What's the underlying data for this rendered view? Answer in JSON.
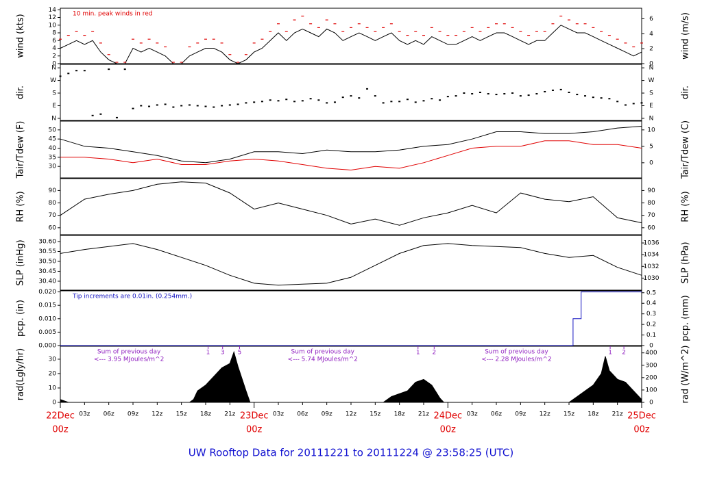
{
  "title": "UW Rooftop Data for 20111221  to  20111224 @ 23:58:25  (UTC)",
  "chart_data": [
    {
      "type": "line",
      "y_label": "wind (kts)",
      "y2_label": "wind (m/s)",
      "note": "10 min. peak winds in red",
      "note_color": "#e00000",
      "xlim": [
        0,
        72
      ],
      "ylim": [
        0,
        14.4
      ],
      "yticks": [
        0,
        2,
        4,
        6,
        8,
        10,
        12,
        14
      ],
      "y2lim": [
        0,
        7.41
      ],
      "y2ticks": [
        0,
        2,
        4,
        6
      ],
      "x": [
        0,
        1,
        2,
        3,
        4,
        5,
        6,
        7,
        8,
        9,
        10,
        11,
        12,
        13,
        14,
        15,
        16,
        17,
        18,
        19,
        20,
        21,
        22,
        23,
        24,
        25,
        26,
        27,
        28,
        29,
        30,
        31,
        32,
        33,
        34,
        35,
        36,
        37,
        38,
        39,
        40,
        41,
        42,
        43,
        44,
        45,
        46,
        47,
        48,
        49,
        50,
        51,
        52,
        53,
        54,
        55,
        56,
        57,
        58,
        59,
        60,
        61,
        62,
        63,
        64,
        65,
        66,
        67,
        68,
        69,
        70,
        71,
        72
      ],
      "series": [
        {
          "color": "#000000",
          "values": [
            4,
            5,
            6,
            5,
            6,
            3,
            1,
            0,
            0,
            4,
            3,
            4,
            3,
            2,
            0,
            0,
            2,
            3,
            4,
            4,
            3,
            1,
            0,
            1,
            3,
            4,
            6,
            8,
            6,
            8,
            9,
            8,
            7,
            9,
            8,
            6,
            7,
            8,
            7,
            6,
            7,
            8,
            6,
            5,
            6,
            5,
            7,
            6,
            5,
            5,
            6,
            7,
            6,
            7,
            8,
            8,
            7,
            6,
            5,
            6,
            6,
            8,
            10,
            9,
            8,
            8,
            7,
            6,
            5,
            4,
            3,
            2,
            3
          ]
        },
        {
          "color": "#e00000",
          "marker": "dash",
          "values": [
            6,
            7,
            8,
            7,
            8,
            5,
            2,
            0,
            0,
            6,
            5,
            6,
            5,
            4,
            0,
            0,
            4,
            5,
            6,
            6,
            5,
            2,
            0,
            2,
            5,
            6,
            8,
            10,
            8,
            11,
            12,
            10,
            9,
            11,
            10,
            8,
            9,
            10,
            9,
            8,
            9,
            10,
            8,
            7,
            8,
            7,
            9,
            8,
            7,
            7,
            8,
            9,
            8,
            9,
            10,
            10,
            9,
            8,
            7,
            8,
            8,
            10,
            12,
            11,
            10,
            10,
            9,
            8,
            7,
            6,
            5,
            4,
            5
          ]
        }
      ]
    },
    {
      "type": "scatter",
      "y_label": "dir.",
      "y2_label": "dir.",
      "xlim": [
        0,
        72
      ],
      "ylim": [
        -15,
        385
      ],
      "yticks": [
        {
          "value": 0,
          "label": "N"
        },
        {
          "value": 90,
          "label": "E"
        },
        {
          "value": 180,
          "label": "S"
        },
        {
          "value": 270,
          "label": "W"
        },
        {
          "value": 360,
          "label": "N"
        }
      ],
      "y2lim": [
        -15,
        385
      ],
      "y2ticks": [
        {
          "value": 0,
          "label": "N"
        },
        {
          "value": 90,
          "label": "E"
        },
        {
          "value": 180,
          "label": "S"
        },
        {
          "value": 270,
          "label": "W"
        },
        {
          "value": 360,
          "label": "N"
        }
      ],
      "x": [
        0,
        1,
        2,
        3,
        4,
        5,
        6,
        7,
        8,
        9,
        10,
        11,
        12,
        13,
        14,
        15,
        16,
        17,
        18,
        19,
        20,
        21,
        22,
        23,
        24,
        25,
        26,
        27,
        28,
        29,
        30,
        31,
        32,
        33,
        34,
        35,
        36,
        37,
        38,
        39,
        40,
        41,
        42,
        43,
        44,
        45,
        46,
        47,
        48,
        49,
        50,
        51,
        52,
        53,
        54,
        55,
        56,
        57,
        58,
        59,
        60,
        61,
        62,
        63,
        64,
        65,
        66,
        67,
        68,
        69,
        70,
        71,
        72
      ],
      "series": [
        {
          "color": "#000000",
          "values": [
            300,
            320,
            340,
            340,
            20,
            30,
            350,
            5,
            350,
            70,
            90,
            85,
            95,
            100,
            80,
            90,
            95,
            90,
            85,
            80,
            90,
            95,
            100,
            110,
            115,
            120,
            130,
            125,
            135,
            120,
            125,
            140,
            130,
            110,
            115,
            150,
            160,
            145,
            210,
            160,
            110,
            120,
            120,
            135,
            115,
            125,
            140,
            130,
            155,
            160,
            180,
            175,
            185,
            175,
            170,
            175,
            180,
            160,
            165,
            175,
            190,
            200,
            205,
            185,
            170,
            160,
            150,
            145,
            140,
            120,
            95,
            105,
            110
          ]
        }
      ]
    },
    {
      "type": "line",
      "y_label": "Tair/Tdew (F)",
      "y2_label": "Tair/Tdew (C)",
      "xlim": [
        0,
        72
      ],
      "ylim": [
        23.7,
        54.8
      ],
      "yticks": [
        30,
        35,
        40,
        45,
        50
      ],
      "y2lim": [
        -4.61,
        12.67
      ],
      "y2ticks": [
        0,
        5,
        10
      ],
      "x": [
        0,
        3,
        6,
        9,
        12,
        15,
        18,
        21,
        24,
        27,
        30,
        33,
        36,
        39,
        42,
        45,
        48,
        51,
        54,
        57,
        60,
        63,
        66,
        69,
        72
      ],
      "series": [
        {
          "color": "#000000",
          "values": [
            45,
            41,
            40,
            38,
            36,
            33,
            32,
            34,
            38,
            38,
            37,
            39,
            38,
            38,
            39,
            41,
            42,
            45,
            49,
            49,
            48,
            48,
            49,
            51,
            52
          ]
        },
        {
          "color": "#e00000",
          "values": [
            35,
            35,
            34,
            32,
            34,
            31,
            31,
            33,
            34,
            33,
            31,
            29,
            28,
            30,
            29,
            32,
            36,
            40,
            41,
            41,
            44,
            44,
            42,
            42,
            40
          ]
        }
      ]
    },
    {
      "type": "line",
      "y_label": "RH (%)",
      "y2_label": "RH (%)",
      "xlim": [
        0,
        72
      ],
      "ylim": [
        54.4,
        99.6
      ],
      "yticks": [
        60,
        70,
        80,
        90
      ],
      "y2lim": [
        54.4,
        99.6
      ],
      "y2ticks": [
        60,
        70,
        80,
        90
      ],
      "x": [
        0,
        3,
        6,
        9,
        12,
        15,
        18,
        21,
        24,
        27,
        30,
        33,
        36,
        39,
        42,
        45,
        48,
        51,
        54,
        57,
        60,
        63,
        66,
        69,
        72
      ],
      "series": [
        {
          "color": "#000000",
          "values": [
            70,
            83,
            87,
            90,
            95,
            97,
            96,
            88,
            75,
            80,
            75,
            70,
            63,
            67,
            62,
            68,
            72,
            78,
            72,
            88,
            83,
            81,
            85,
            68,
            64
          ]
        }
      ]
    },
    {
      "type": "line",
      "y_label": "SLP (inHg)",
      "y2_label": "SLP (hPa)",
      "xlim": [
        0,
        72
      ],
      "ylim": [
        30.355,
        30.631
      ],
      "yticks": [
        {
          "value": 30.4,
          "label": "30.40"
        },
        30.45,
        {
          "value": 30.5,
          "label": "30.50"
        },
        30.55,
        {
          "value": 30.6,
          "label": "30.60"
        }
      ],
      "y2lim": [
        1027.94,
        1037.29
      ],
      "y2ticks": [
        1030,
        1032,
        1034,
        1036
      ],
      "x": [
        0,
        3,
        6,
        9,
        12,
        15,
        18,
        21,
        24,
        27,
        30,
        33,
        36,
        39,
        42,
        45,
        48,
        51,
        54,
        57,
        60,
        63,
        66,
        69,
        72
      ],
      "series": [
        {
          "color": "#000000",
          "values": [
            30.54,
            30.56,
            30.575,
            30.59,
            30.56,
            30.52,
            30.48,
            30.43,
            30.39,
            30.38,
            30.385,
            30.39,
            30.42,
            30.48,
            30.54,
            30.58,
            30.59,
            30.58,
            30.575,
            30.57,
            30.54,
            30.52,
            30.53,
            30.47,
            30.43
          ]
        }
      ]
    },
    {
      "type": "line",
      "y_label": "pcp. (in)",
      "y2_label": "pcp. (mm)",
      "note": "Tip increments are 0.01in. (0.254mm.)",
      "note_color": "#1010c0",
      "xlim": [
        0,
        72
      ],
      "ylim": [
        0,
        0.0204
      ],
      "yticks": [
        {
          "value": 0,
          "label": "0.000"
        },
        {
          "value": 0.005,
          "label": "0.005"
        },
        {
          "value": 0.01,
          "label": "0.010"
        },
        {
          "value": 0.015,
          "label": "0.015"
        },
        {
          "value": 0.02,
          "label": "0.020"
        }
      ],
      "y2lim": [
        0,
        0.518
      ],
      "y2ticks": [
        0,
        0.1,
        0.2,
        0.3,
        0.4,
        0.5
      ],
      "x": [
        0,
        63.5,
        63.5,
        64.5,
        64.5,
        72
      ],
      "series": [
        {
          "color": "#1010c0",
          "values": [
            0,
            0,
            0.01,
            0.01,
            0.02,
            0.02
          ]
        }
      ]
    },
    {
      "type": "area",
      "y_label": "rad(Lgly/hr)",
      "y2_label": "rad (W/m^2)",
      "xlim": [
        0,
        72
      ],
      "ylim": [
        0,
        39
      ],
      "yticks": [
        0,
        10,
        20,
        30
      ],
      "y2lim": [
        0,
        453.6
      ],
      "y2ticks": [
        0,
        100,
        200,
        300,
        400
      ],
      "x": [
        0,
        1,
        2,
        16,
        16.5,
        17,
        18,
        19,
        20,
        21,
        21.5,
        22,
        23,
        23.5,
        40,
        41,
        42,
        43,
        44,
        45,
        46,
        47,
        47.5,
        63,
        64,
        65,
        66,
        67,
        67.5,
        68,
        69,
        70,
        71,
        72
      ],
      "series": [
        {
          "color": "#000000",
          "values": [
            2,
            0,
            0,
            0,
            2,
            8,
            12,
            18,
            24,
            27,
            35,
            25,
            8,
            0,
            0,
            4,
            6,
            8,
            14,
            16,
            12,
            3,
            0,
            0,
            4,
            8,
            12,
            20,
            32,
            22,
            16,
            14,
            8,
            2
          ]
        }
      ],
      "daily_sums": [
        {
          "center": 8.5,
          "label": "Sum of previous day",
          "value_label": "<--- 3.95 MJoules/m^2"
        },
        {
          "center": 32.5,
          "label": "Sum of previous day",
          "value_label": "<--- 5.74 MJoules/m^2"
        },
        {
          "center": 56.5,
          "label": "Sum of previous day",
          "value_label": "<--- 2.28 MJoules/m^2"
        }
      ],
      "markers": [
        {
          "x": 18.3,
          "label": "1"
        },
        {
          "x": 20.1,
          "label": "3"
        },
        {
          "x": 22.2,
          "label": "5"
        },
        {
          "x": 44.3,
          "label": "1"
        },
        {
          "x": 46.3,
          "label": "2"
        },
        {
          "x": 68.1,
          "label": "1"
        },
        {
          "x": 69.8,
          "label": "2"
        }
      ],
      "xticks": [
        {
          "value": 0,
          "label": "00z"
        },
        {
          "value": 3,
          "label": "03z"
        },
        {
          "value": 6,
          "label": "06z"
        },
        {
          "value": 9,
          "label": "09z"
        },
        {
          "value": 12,
          "label": "12z"
        },
        {
          "value": 15,
          "label": "15z"
        },
        {
          "value": 18,
          "label": "18z"
        },
        {
          "value": 21,
          "label": "21z"
        },
        {
          "value": 24,
          "label": "00z"
        },
        {
          "value": 27,
          "label": "03z"
        },
        {
          "value": 30,
          "label": "06z"
        },
        {
          "value": 33,
          "label": "09z"
        },
        {
          "value": 36,
          "label": "12z"
        },
        {
          "value": 39,
          "label": "15z"
        },
        {
          "value": 42,
          "label": "18z"
        },
        {
          "value": 45,
          "label": "21z"
        },
        {
          "value": 48,
          "label": "00z"
        },
        {
          "value": 51,
          "label": "03z"
        },
        {
          "value": 54,
          "label": "06z"
        },
        {
          "value": 57,
          "label": "09z"
        },
        {
          "value": 60,
          "label": "12z"
        },
        {
          "value": 63,
          "label": "15z"
        },
        {
          "value": 66,
          "label": "18z"
        },
        {
          "value": 69,
          "label": "21z"
        },
        {
          "value": 72,
          "label": "00z"
        }
      ],
      "date_labels": [
        {
          "value": 0,
          "label": "22Dec"
        },
        {
          "value": 24,
          "label": "23Dec"
        },
        {
          "value": 48,
          "label": "24Dec"
        },
        {
          "value": 72,
          "label": "25Dec"
        }
      ]
    }
  ]
}
